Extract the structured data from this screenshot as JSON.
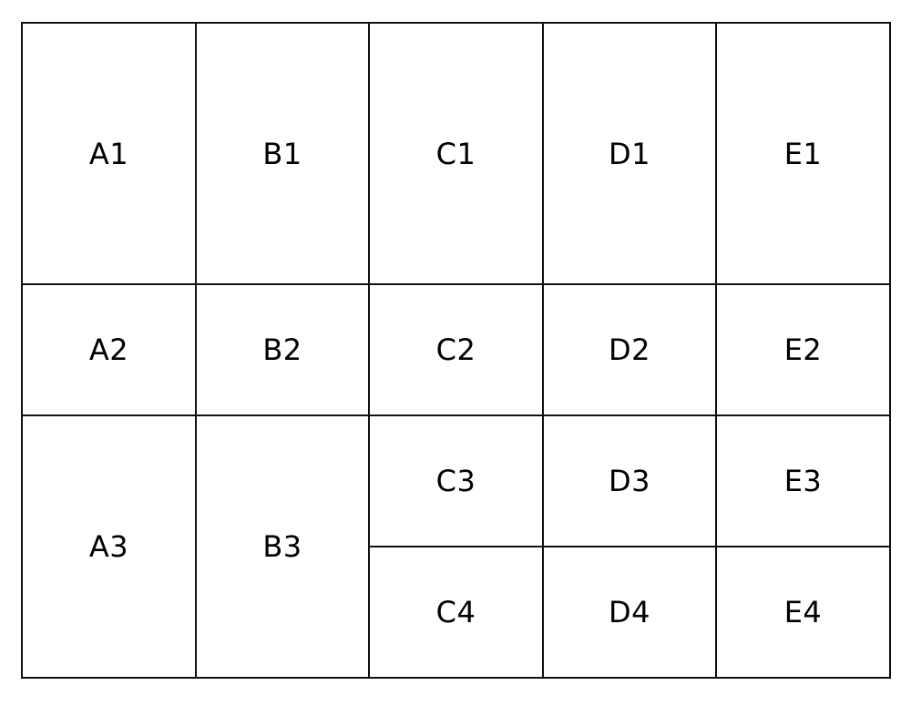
{
  "grid": {
    "row1": [
      "A1",
      "B1",
      "C1",
      "D1",
      "E1"
    ],
    "row2": [
      "A2",
      "B2",
      "C2",
      "D2",
      "E2"
    ],
    "row3": [
      "A3",
      "B3",
      "C3",
      "D3",
      "E3"
    ],
    "row4": [
      "C4",
      "D4",
      "E4"
    ]
  },
  "colors": {
    "border": "#111111",
    "text": "#000000",
    "background": "#ffffff"
  }
}
